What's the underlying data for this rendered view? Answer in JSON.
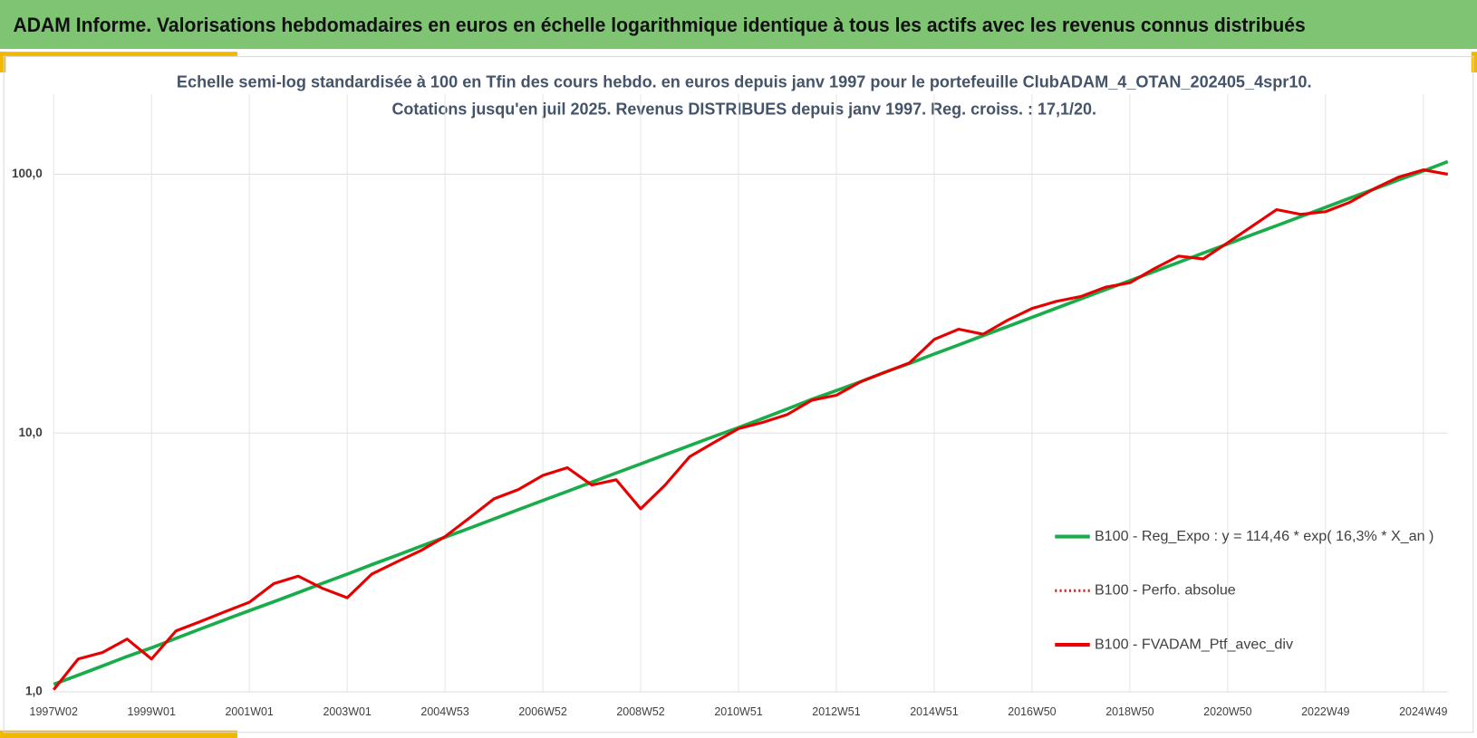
{
  "chart_data": {
    "type": "line",
    "title": "ADAM Informe. Valorisations hebdomadaires en euros en échelle logarithmique identique à tous les actifs avec les revenus connus distribués",
    "subtitle": [
      "Echelle semi-log standardisée à 100 en Tfin des cours hebdo.  en euros depuis janv 1997 pour le portefeuille ClubADAM_4_OTAN_202405_4spr10.",
      "Cotations jusqu'en juil 2025. Revenus DISTRIBUES depuis janv 1997. Reg. croiss. : 17,1/20."
    ],
    "categories": [
      "1997W02",
      null,
      null,
      null,
      "1999W01",
      null,
      null,
      null,
      "2001W01",
      null,
      null,
      null,
      "2003W01",
      null,
      null,
      null,
      "2004W53",
      null,
      null,
      null,
      "2006W52",
      null,
      null,
      null,
      "2008W52",
      null,
      null,
      null,
      "2010W51",
      null,
      null,
      null,
      "2012W51",
      null,
      null,
      null,
      "2014W51",
      null,
      null,
      null,
      "2016W50",
      null,
      null,
      null,
      "2018W50",
      null,
      null,
      null,
      "2020W50",
      null,
      null,
      null,
      "2022W49",
      null,
      null,
      null,
      "2024W49",
      null
    ],
    "series": [
      {
        "name": "B100 - Reg_Expo : y = 114,46 * exp( 16,3% *  X_an )",
        "color": "#1aab4b",
        "style": "solid",
        "values": [
          1.07,
          1.16,
          1.26,
          1.37,
          1.48,
          1.61,
          1.75,
          1.9,
          2.06,
          2.23,
          2.42,
          2.63,
          2.85,
          3.1,
          3.36,
          3.65,
          3.96,
          4.29,
          4.66,
          5.06,
          5.49,
          5.95,
          6.46,
          7.01,
          7.6,
          8.25,
          8.95,
          9.71,
          10.5,
          11.4,
          12.4,
          13.5,
          14.6,
          15.8,
          17.2,
          18.6,
          20.2,
          21.9,
          23.8,
          25.8,
          28.0,
          30.4,
          33.0,
          35.8,
          38.8,
          42.1,
          45.7,
          49.6,
          53.8,
          58.4,
          63.3,
          68.7,
          74.5,
          80.9,
          87.7,
          95.2,
          103,
          112
        ]
      },
      {
        "name": "B100 - Perfo. absolue",
        "color": "#e02020",
        "style": "dotted"
      },
      {
        "name": "B100 - FVADAM_Ptf_avec_div",
        "color": "#e80000",
        "style": "solid",
        "values": [
          1.02,
          1.34,
          1.42,
          1.6,
          1.34,
          1.72,
          1.87,
          2.04,
          2.22,
          2.62,
          2.8,
          2.51,
          2.31,
          2.85,
          3.17,
          3.51,
          3.98,
          4.7,
          5.57,
          6.05,
          6.86,
          7.35,
          6.3,
          6.6,
          5.1,
          6.3,
          8.1,
          9.2,
          10.4,
          11.0,
          11.8,
          13.4,
          14.0,
          15.8,
          17.2,
          18.7,
          23.0,
          25.2,
          24.1,
          27.3,
          30.3,
          32.3,
          33.7,
          36.6,
          38.1,
          43.2,
          48.3,
          47.1,
          54.4,
          63.0,
          73.0,
          70.0,
          71.7,
          78,
          88,
          97.6,
          104,
          100
        ]
      }
    ],
    "log_scale": true,
    "ylim": [
      1,
      204
    ],
    "yticks": [
      {
        "value": 1,
        "label": "1,0"
      },
      {
        "value": 10,
        "label": "10,0"
      },
      {
        "value": 100,
        "label": "100,0"
      }
    ],
    "grid": true,
    "legend": "lower right"
  }
}
